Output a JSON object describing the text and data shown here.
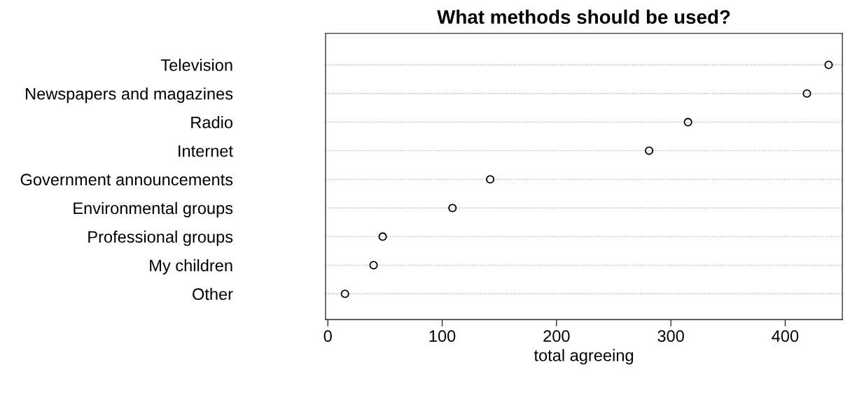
{
  "chart_data": {
    "type": "scatter",
    "orientation": "horizontal",
    "title": "What methods should be used?",
    "xlabel": "total agreeing",
    "categories": [
      "Television",
      "Newspapers and magazines",
      "Radio",
      "Internet",
      "Government announcements",
      "Environmental groups",
      "Professional groups",
      "My children",
      "Other"
    ],
    "values": [
      438,
      419,
      315,
      281,
      142,
      109,
      48,
      40,
      15
    ],
    "color": "#000000",
    "marker": "circle",
    "grid": "y",
    "line_style": "dotted",
    "xlim": [
      -2,
      450
    ],
    "xticks": [
      0,
      100,
      200,
      300,
      400
    ]
  }
}
